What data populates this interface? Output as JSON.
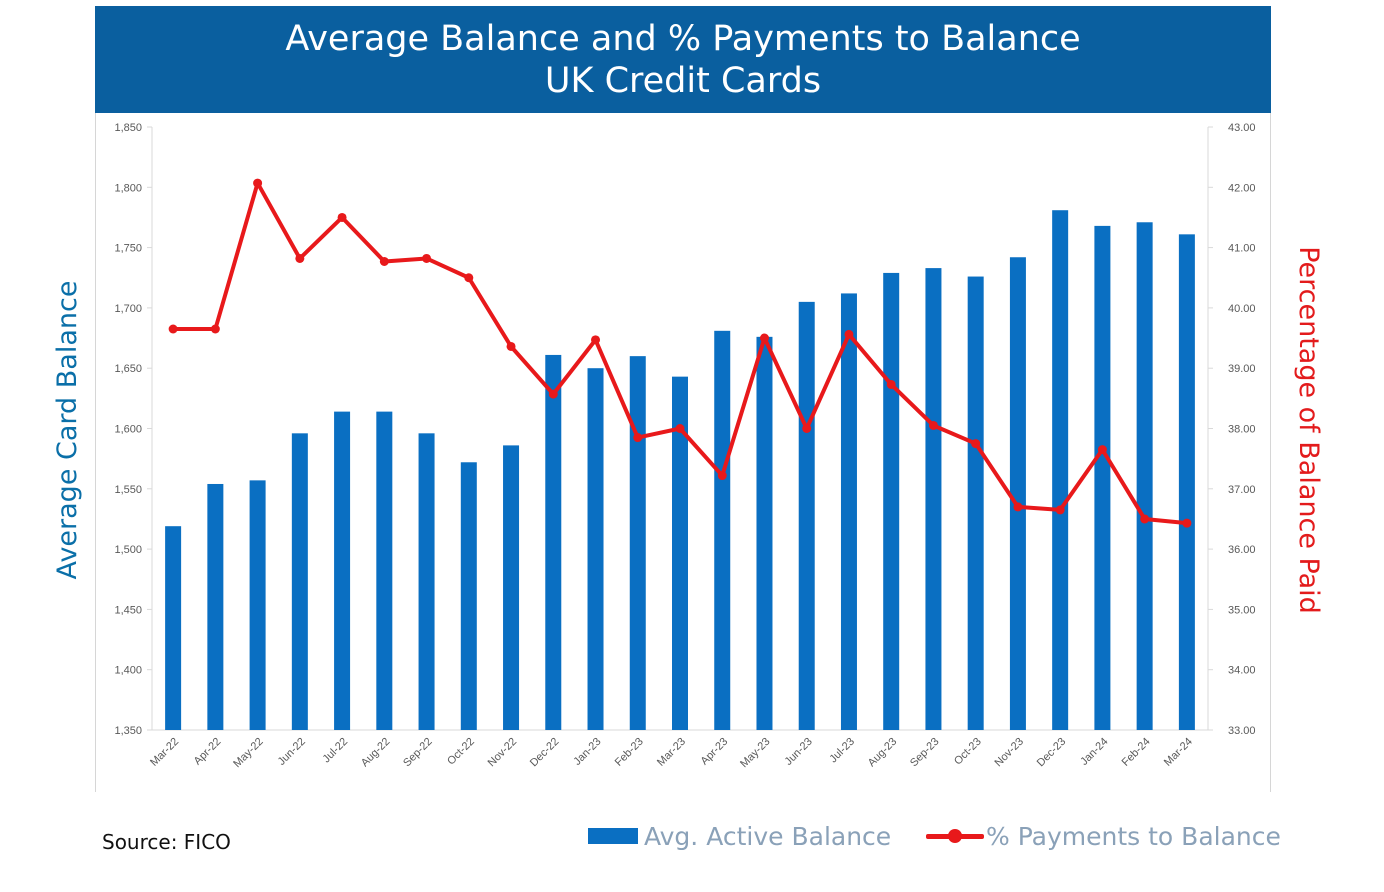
{
  "colors": {
    "banner": "#0a5f9f",
    "bars": "#0a6fc2",
    "line": "#e8191b",
    "left_axis_title": "#0a6fa8",
    "right_axis_title": "#e31b1c"
  },
  "source": "Source: FICO",
  "chart_data": {
    "type": "bar",
    "title_line1": "Average Balance and % Payments to Balance",
    "title_line2": "UK Credit Cards",
    "ylabel": "Average Card Balance",
    "y2label": "Percentage of Balance Paid",
    "ylim": [
      1350,
      1850
    ],
    "y_ticks": [
      "1,350",
      "1,400",
      "1,450",
      "1,500",
      "1,550",
      "1,600",
      "1,650",
      "1,700",
      "1,750",
      "1,800",
      "1,850"
    ],
    "y2lim": [
      33,
      43
    ],
    "y2_ticks": [
      "33.00",
      "34.00",
      "35.00",
      "36.00",
      "37.00",
      "38.00",
      "39.00",
      "40.00",
      "41.00",
      "42.00",
      "43.00"
    ],
    "grid": false,
    "legend_position": "bottom-right",
    "categories": [
      "Mar-22",
      "Apr-22",
      "May-22",
      "Jun-22",
      "Jul-22",
      "Aug-22",
      "Sep-22",
      "Oct-22",
      "Nov-22",
      "Dec-22",
      "Jan-23",
      "Feb-23",
      "Mar-23",
      "Apr-23",
      "May-23",
      "Jun-23",
      "Jul-23",
      "Aug-23",
      "Sep-23",
      "Oct-23",
      "Nov-23",
      "Dec-23",
      "Jan-24",
      "Feb-24",
      "Mar-24"
    ],
    "series": [
      {
        "name": "Avg. Active Balance",
        "type": "bar",
        "axis": "left",
        "values": [
          1519,
          1554,
          1557,
          1596,
          1614,
          1614,
          1596,
          1572,
          1586,
          1661,
          1650,
          1660,
          1643,
          1681,
          1676,
          1705,
          1712,
          1729,
          1733,
          1726,
          1742,
          1781,
          1768,
          1771,
          1761
        ]
      },
      {
        "name": "% Payments to Balance",
        "type": "line",
        "axis": "right",
        "values": [
          39.65,
          39.65,
          42.07,
          40.82,
          41.5,
          40.77,
          40.82,
          40.5,
          39.36,
          38.57,
          39.47,
          37.85,
          38.0,
          37.22,
          39.5,
          38.0,
          39.56,
          38.73,
          38.05,
          37.75,
          36.7,
          36.65,
          37.65,
          36.5,
          36.43
        ]
      }
    ]
  }
}
